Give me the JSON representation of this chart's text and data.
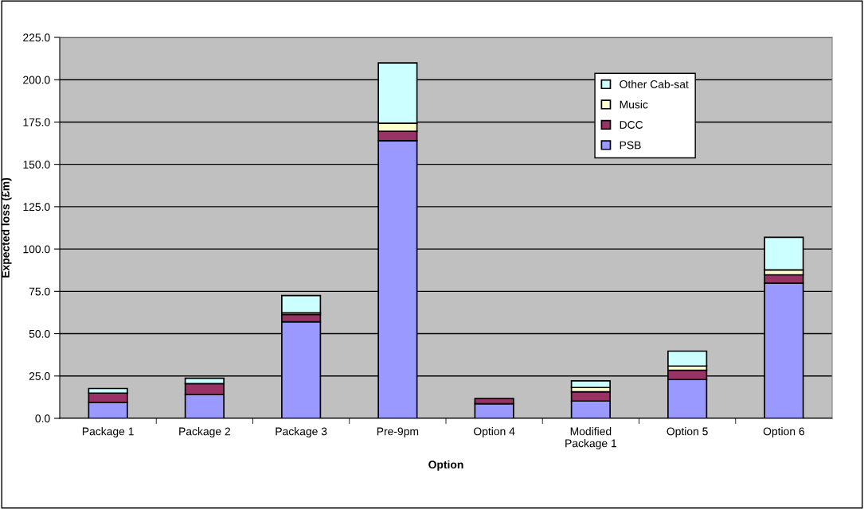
{
  "chart_data": {
    "type": "bar",
    "stacked": true,
    "xlabel": "Option",
    "ylabel": "Expected loss (£m)",
    "categories": [
      "Package 1",
      "Package 2",
      "Package 3",
      "Pre-9pm",
      "Option 4",
      "Modified\nPackage 1",
      "Option 5",
      "Option 6"
    ],
    "series": [
      {
        "name": "PSB",
        "color": "#9999ff",
        "values": [
          9.4,
          14.1,
          57.0,
          164.0,
          8.6,
          10.2,
          22.9,
          79.9
        ]
      },
      {
        "name": "DCC",
        "color": "#993366",
        "values": [
          5.5,
          6.4,
          4.3,
          5.5,
          3.1,
          5.5,
          5.5,
          4.9
        ]
      },
      {
        "name": "Music",
        "color": "#ffffcc",
        "values": [
          null,
          null,
          1.0,
          4.8,
          null,
          2.5,
          2.5,
          2.9
        ]
      },
      {
        "name": "Other Cab-sat",
        "color": "#ccffff",
        "values": [
          2.7,
          3.2,
          10.2,
          35.6,
          null,
          3.9,
          8.8,
          19.2
        ]
      }
    ],
    "ylim": [
      0,
      225
    ],
    "yticks": [
      {
        "value": 0,
        "label": "0.0"
      },
      {
        "value": 25,
        "label": "25.0"
      },
      {
        "value": 50,
        "label": "50.0"
      },
      {
        "value": 75,
        "label": "75.0"
      },
      {
        "value": 100,
        "label": "100.0"
      },
      {
        "value": 125,
        "label": "125.0"
      },
      {
        "value": 150,
        "label": "150.0"
      },
      {
        "value": 175,
        "label": "175.0"
      },
      {
        "value": 200,
        "label": "200.0"
      },
      {
        "value": 225,
        "label": "225.0"
      }
    ],
    "grid": "y",
    "legend": "top right"
  }
}
